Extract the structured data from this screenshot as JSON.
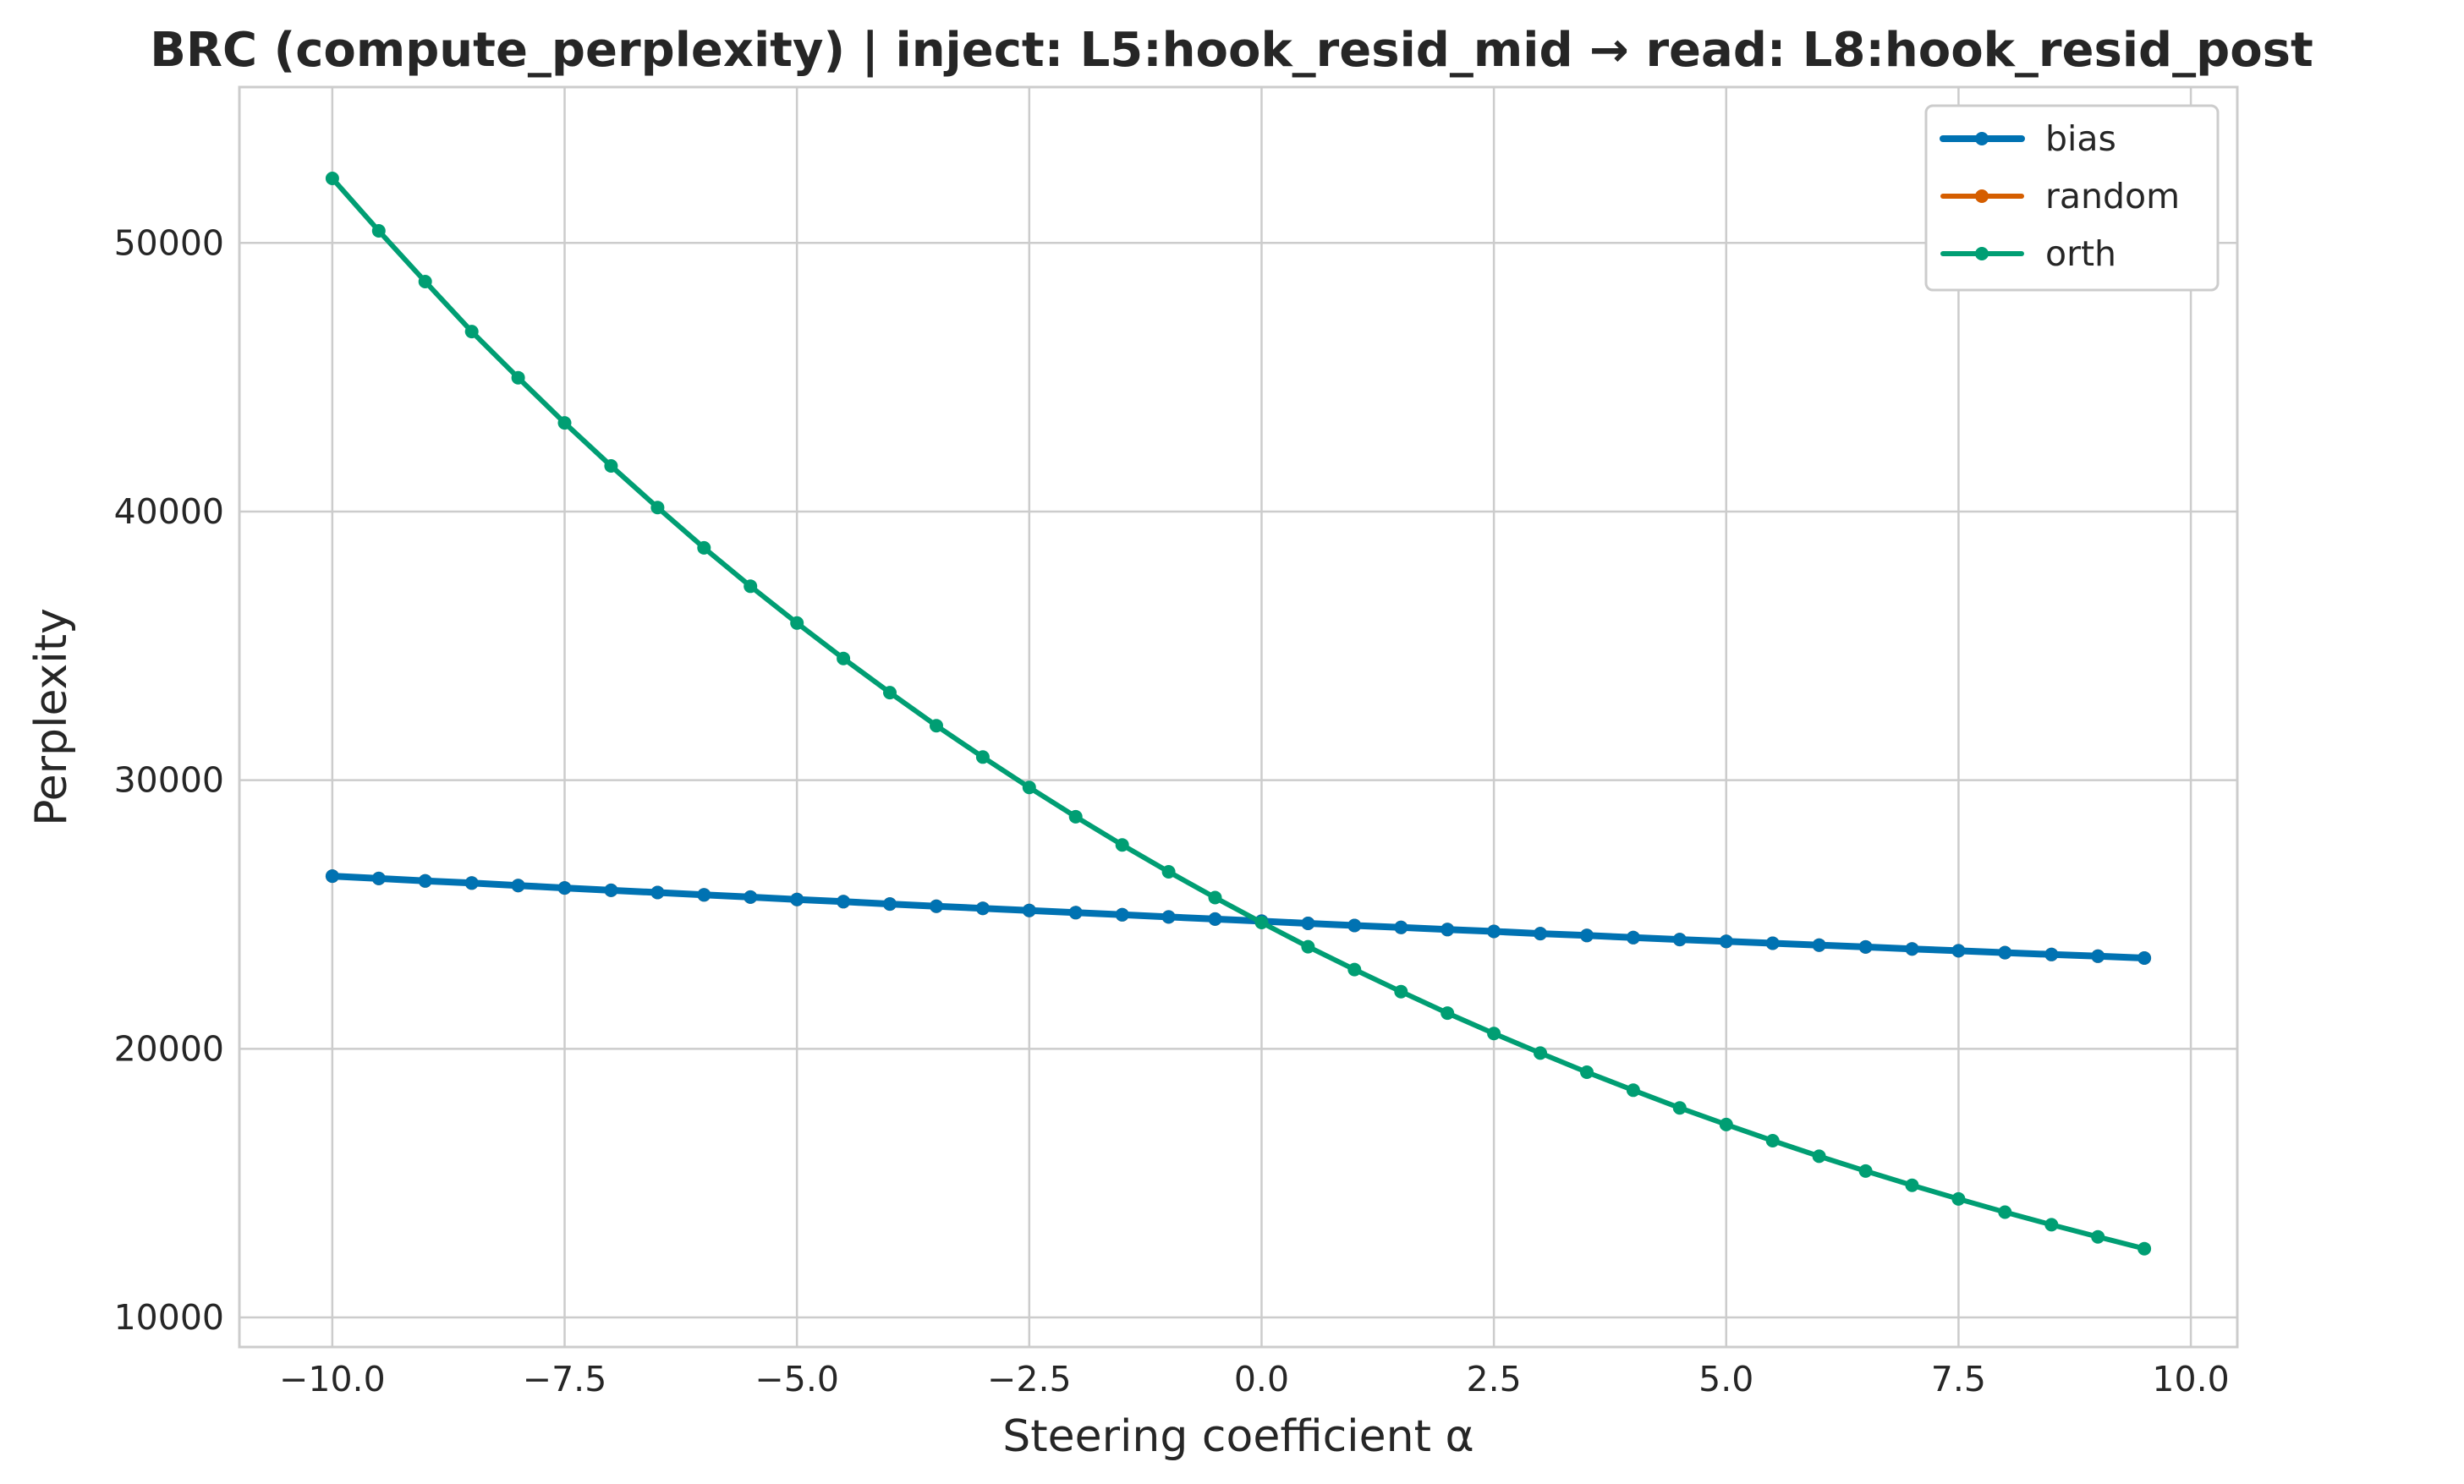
{
  "chart_data": {
    "type": "line",
    "title": "BRC (compute_perplexity) | inject: L5:hook_resid_mid → read: L8:hook_resid_post",
    "xlabel": "Steering coefficient α",
    "ylabel": "Perplexity",
    "xlim": [
      -11.0,
      10.5
    ],
    "ylim": [
      8900,
      55800
    ],
    "grid": true,
    "legend_position": "top-right",
    "x_ticks": [
      {
        "value": -10.0,
        "label": "−10.0"
      },
      {
        "value": -7.5,
        "label": "−7.5"
      },
      {
        "value": -5.0,
        "label": "−5.0"
      },
      {
        "value": -2.5,
        "label": "−2.5"
      },
      {
        "value": 0.0,
        "label": "0.0"
      },
      {
        "value": 2.5,
        "label": "2.5"
      },
      {
        "value": 5.0,
        "label": "5.0"
      },
      {
        "value": 7.5,
        "label": "7.5"
      },
      {
        "value": 10.0,
        "label": "10.0"
      }
    ],
    "y_ticks": [
      {
        "value": 10000,
        "label": "10000"
      },
      {
        "value": 20000,
        "label": "20000"
      },
      {
        "value": 30000,
        "label": "30000"
      },
      {
        "value": 40000,
        "label": "40000"
      },
      {
        "value": 50000,
        "label": "50000"
      }
    ],
    "x": [
      -10.0,
      -9.5,
      -9.0,
      -8.5,
      -8.0,
      -7.5,
      -7.0,
      -6.5,
      -6.0,
      -5.5,
      -5.0,
      -4.5,
      -4.0,
      -3.5,
      -3.0,
      -2.5,
      -2.0,
      -1.5,
      -1.0,
      -0.5,
      0.0,
      0.5,
      1.0,
      1.5,
      2.0,
      2.5,
      3.0,
      3.5,
      4.0,
      4.5,
      5.0,
      5.5,
      6.0,
      6.5,
      7.0,
      7.5,
      8.0,
      8.5,
      9.0,
      9.5
    ],
    "series": [
      {
        "name": "random",
        "color": "#d55e00",
        "line_width": 6,
        "values": [
          26430,
          26340,
          26250,
          26170,
          26080,
          25990,
          25900,
          25820,
          25730,
          25650,
          25560,
          25480,
          25390,
          25310,
          25230,
          25150,
          25070,
          24990,
          24910,
          24830,
          24750,
          24670,
          24590,
          24520,
          24440,
          24370,
          24290,
          24220,
          24140,
          24070,
          24000,
          23930,
          23860,
          23790,
          23720,
          23650,
          23580,
          23510,
          23450,
          23380
        ]
      },
      {
        "name": "bias",
        "color": "#0072b2",
        "line_width": 8,
        "values": [
          26430,
          26340,
          26250,
          26170,
          26080,
          25990,
          25900,
          25820,
          25730,
          25650,
          25560,
          25480,
          25390,
          25310,
          25230,
          25150,
          25070,
          24990,
          24910,
          24830,
          24750,
          24670,
          24590,
          24520,
          24440,
          24370,
          24290,
          24220,
          24140,
          24070,
          24000,
          23930,
          23860,
          23790,
          23720,
          23650,
          23580,
          23510,
          23450,
          23380
        ]
      },
      {
        "name": "orth",
        "color": "#009e73",
        "line_width": 6,
        "values": [
          52400,
          50450,
          48560,
          46700,
          44980,
          43300,
          41700,
          40150,
          38650,
          37220,
          35850,
          34530,
          33260,
          32030,
          30860,
          29730,
          28640,
          27590,
          26590,
          25630,
          24700,
          23800,
          22950,
          22130,
          21330,
          20570,
          19840,
          19130,
          18460,
          17800,
          17180,
          16580,
          16000,
          15450,
          14920,
          14410,
          13920,
          13450,
          13000,
          12560
        ]
      }
    ],
    "legend": [
      "bias",
      "random",
      "orth"
    ]
  }
}
